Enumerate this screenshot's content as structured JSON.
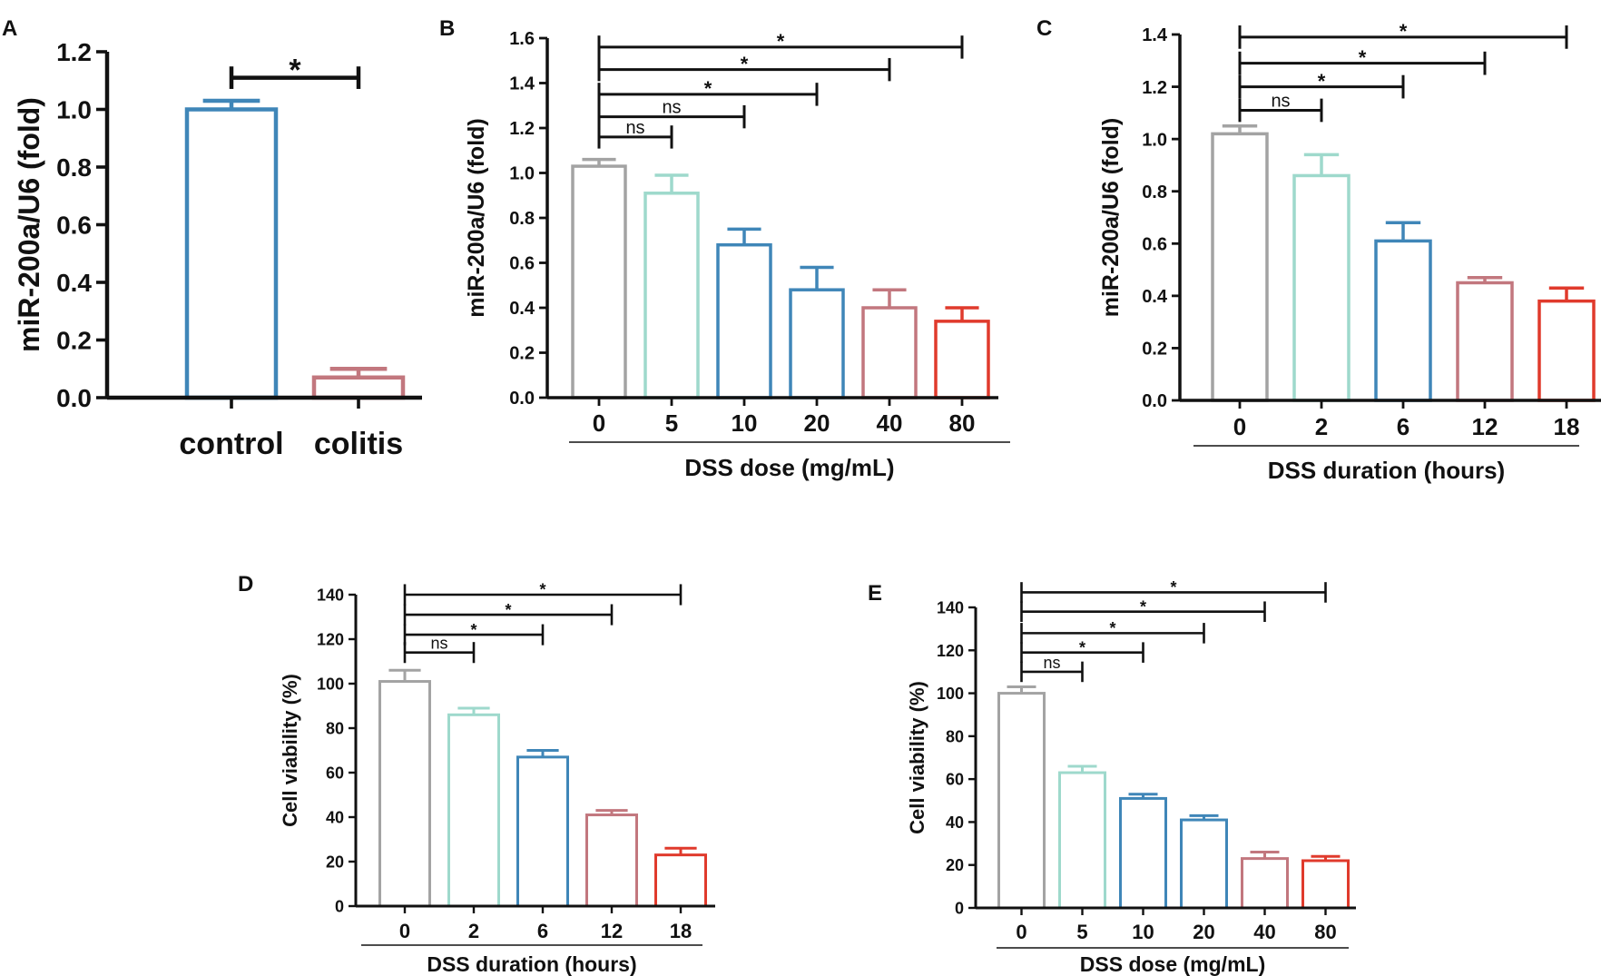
{
  "colors": {
    "grey": "#a3a3a3",
    "teal": "#9ed9cc",
    "blue": "#3f86b8",
    "rose": "#c2777e",
    "red": "#e03a2c",
    "axis": "#111111"
  },
  "chart_data": [
    {
      "panel": "A",
      "type": "bar",
      "title": "",
      "ylabel": "miR-200a/U6 (fold)",
      "xlabel": "",
      "ylim": [
        0,
        1.2
      ],
      "yticks": [
        0,
        0.2,
        0.4,
        0.6,
        0.8,
        1.0,
        1.2
      ],
      "ytick_labels": [
        "0.0",
        "0.2",
        "0.4",
        "0.6",
        "0.8",
        "1.0",
        "1.2"
      ],
      "categories": [
        "control",
        "colitis"
      ],
      "values": [
        1.0,
        0.07
      ],
      "errors": [
        0.03,
        0.03
      ],
      "colors": [
        "#3f86b8",
        "#c2777e"
      ],
      "comparisons": [
        {
          "from": 0,
          "to": 1,
          "level": 1.11,
          "label": "*"
        }
      ]
    },
    {
      "panel": "B",
      "type": "bar",
      "title": "",
      "ylabel": "miR-200a/U6 (fold)",
      "xlabel": "DSS dose (mg/mL)",
      "ylim": [
        0,
        1.6
      ],
      "yticks": [
        0,
        0.2,
        0.4,
        0.6,
        0.8,
        1.0,
        1.2,
        1.4,
        1.6
      ],
      "ytick_labels": [
        "0.0",
        "0.2",
        "0.4",
        "0.6",
        "0.8",
        "1.0",
        "1.2",
        "1.4",
        "1.6"
      ],
      "categories": [
        "0",
        "5",
        "10",
        "20",
        "40",
        "80"
      ],
      "values": [
        1.03,
        0.91,
        0.68,
        0.48,
        0.4,
        0.34
      ],
      "errors": [
        0.03,
        0.08,
        0.07,
        0.1,
        0.08,
        0.06
      ],
      "colors": [
        "#a3a3a3",
        "#9ed9cc",
        "#3f86b8",
        "#3f86b8",
        "#c2777e",
        "#e03a2c"
      ],
      "comparisons": [
        {
          "from": 0,
          "to": 1,
          "level": 1.16,
          "label": "ns"
        },
        {
          "from": 0,
          "to": 2,
          "level": 1.25,
          "label": "ns"
        },
        {
          "from": 0,
          "to": 3,
          "level": 1.35,
          "label": "*"
        },
        {
          "from": 0,
          "to": 4,
          "level": 1.46,
          "label": "*"
        },
        {
          "from": 0,
          "to": 5,
          "level": 1.56,
          "label": "*"
        }
      ]
    },
    {
      "panel": "C",
      "type": "bar",
      "title": "",
      "ylabel": "miR-200a/U6 (fold)",
      "xlabel": "DSS duration (hours)",
      "ylim": [
        0,
        1.4
      ],
      "yticks": [
        0,
        0.2,
        0.4,
        0.6,
        0.8,
        1.0,
        1.2,
        1.4
      ],
      "ytick_labels": [
        "0.0",
        "0.2",
        "0.4",
        "0.6",
        "0.8",
        "1.0",
        "1.2",
        "1.4"
      ],
      "categories": [
        "0",
        "2",
        "6",
        "12",
        "18"
      ],
      "values": [
        1.02,
        0.86,
        0.61,
        0.45,
        0.38
      ],
      "errors": [
        0.03,
        0.08,
        0.07,
        0.02,
        0.05
      ],
      "colors": [
        "#a3a3a3",
        "#9ed9cc",
        "#3f86b8",
        "#c2777e",
        "#e03a2c"
      ],
      "comparisons": [
        {
          "from": 0,
          "to": 1,
          "level": 1.11,
          "label": "ns"
        },
        {
          "from": 0,
          "to": 2,
          "level": 1.2,
          "label": "*"
        },
        {
          "from": 0,
          "to": 3,
          "level": 1.29,
          "label": "*"
        },
        {
          "from": 0,
          "to": 4,
          "level": 1.39,
          "label": "*"
        }
      ]
    },
    {
      "panel": "D",
      "type": "bar",
      "title": "",
      "ylabel": "Cell viability (%)",
      "xlabel": "DSS duration (hours)",
      "ylim": [
        0,
        140
      ],
      "yticks": [
        0,
        20,
        40,
        60,
        80,
        100,
        120,
        140
      ],
      "ytick_labels": [
        "0",
        "20",
        "40",
        "60",
        "80",
        "100",
        "120",
        "140"
      ],
      "categories": [
        "0",
        "2",
        "6",
        "12",
        "18"
      ],
      "values": [
        101,
        86,
        67,
        41,
        23
      ],
      "errors": [
        5,
        3,
        3,
        2,
        3
      ],
      "colors": [
        "#a3a3a3",
        "#9ed9cc",
        "#3f86b8",
        "#c2777e",
        "#e03a2c"
      ],
      "comparisons": [
        {
          "from": 0,
          "to": 1,
          "level": 114,
          "label": "ns"
        },
        {
          "from": 0,
          "to": 2,
          "level": 122,
          "label": "*"
        },
        {
          "from": 0,
          "to": 3,
          "level": 131,
          "label": "*"
        },
        {
          "from": 0,
          "to": 4,
          "level": 140,
          "label": "*"
        }
      ]
    },
    {
      "panel": "E",
      "type": "bar",
      "title": "",
      "ylabel": "Cell viability (%)",
      "xlabel": "DSS dose (mg/mL)",
      "ylim": [
        0,
        140
      ],
      "yticks": [
        0,
        20,
        40,
        60,
        80,
        100,
        120,
        140
      ],
      "ytick_labels": [
        "0",
        "20",
        "40",
        "60",
        "80",
        "100",
        "120",
        "140"
      ],
      "categories": [
        "0",
        "5",
        "10",
        "20",
        "40",
        "80"
      ],
      "values": [
        100,
        63,
        51,
        41,
        23,
        22
      ],
      "errors": [
        3,
        3,
        2,
        2,
        3,
        2
      ],
      "colors": [
        "#a3a3a3",
        "#9ed9cc",
        "#3f86b8",
        "#3f86b8",
        "#c2777e",
        "#e03a2c"
      ],
      "comparisons": [
        {
          "from": 0,
          "to": 1,
          "level": 110,
          "label": "ns"
        },
        {
          "from": 0,
          "to": 2,
          "level": 119,
          "label": "*"
        },
        {
          "from": 0,
          "to": 3,
          "level": 128,
          "label": "*"
        },
        {
          "from": 0,
          "to": 4,
          "level": 138,
          "label": "*"
        },
        {
          "from": 0,
          "to": 5,
          "level": 147,
          "label": "*"
        }
      ]
    }
  ]
}
